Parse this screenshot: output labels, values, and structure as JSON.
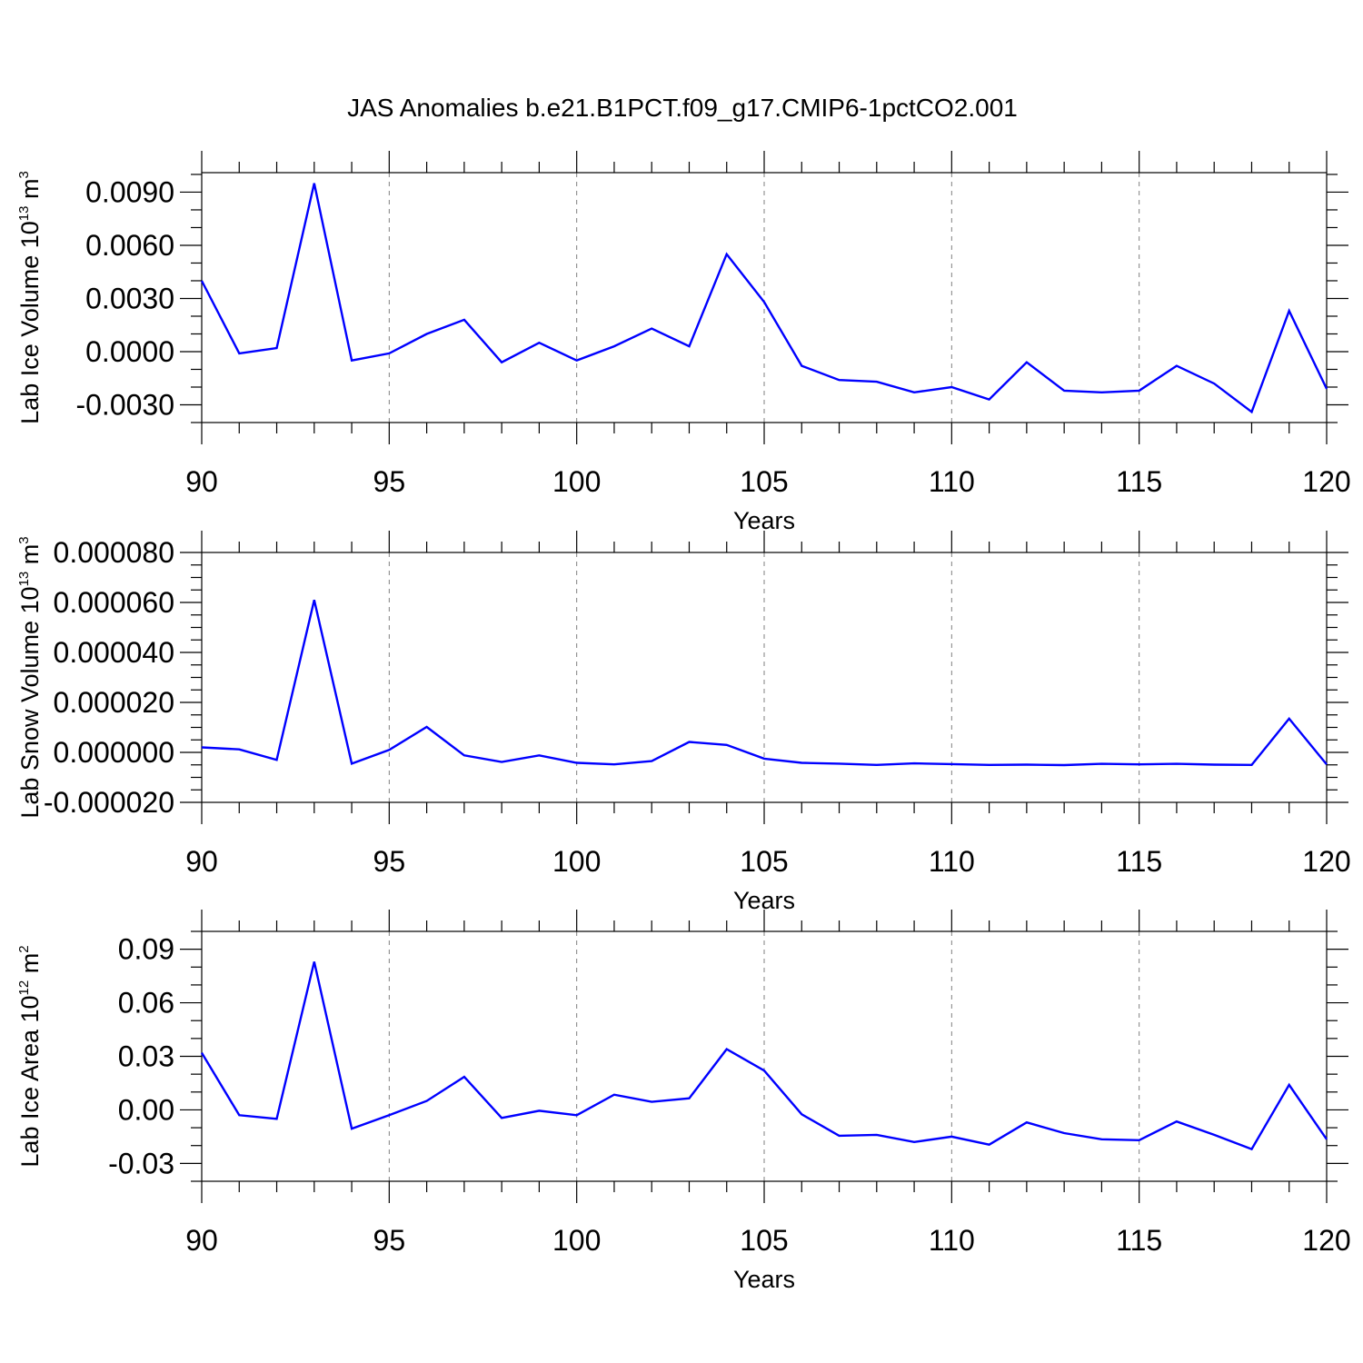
{
  "figure_title": "JAS Anomalies b.e21.B1PCT.f09_g17.CMIP6-1pctCO2.001",
  "colors": {
    "series_line": "#0000ff",
    "grid": "#7f7f7f",
    "axis": "#000000"
  },
  "chart_data": [
    {
      "type": "line",
      "title": "JAS Anomalies b.e21.B1PCT.f09_g17.CMIP6-1pctCO2.001",
      "xlabel": "Years",
      "ylabel": {
        "prefix": "Lab Ice Volume 10",
        "exponent": "13",
        "unit": "m",
        "unit_exponent": "3"
      },
      "xlim": [
        90,
        120
      ],
      "ylim": [
        -0.004,
        0.0101
      ],
      "x_ticks": [
        90,
        95,
        100,
        105,
        110,
        115,
        120
      ],
      "x_tick_labels": [
        "90",
        "95",
        "100",
        "105",
        "110",
        "115",
        "120"
      ],
      "y_ticks": [
        -0.003,
        0.0,
        0.003,
        0.006,
        0.009
      ],
      "y_tick_labels": [
        "-0.0030",
        "0.0000",
        "0.0030",
        "0.0060",
        "0.0090"
      ],
      "y_minor_step": 0.001,
      "grid": "vertical dashed at major x ticks",
      "x": [
        90,
        91,
        92,
        93,
        94,
        95,
        96,
        97,
        98,
        99,
        100,
        101,
        102,
        103,
        104,
        105,
        106,
        107,
        108,
        109,
        110,
        111,
        112,
        113,
        114,
        115,
        116,
        117,
        118,
        119,
        120
      ],
      "values": [
        0.004,
        -0.0001,
        0.0002,
        0.0095,
        -0.0005,
        -0.0001,
        0.001,
        0.0018,
        -0.0006,
        0.0005,
        -0.0005,
        0.0003,
        0.0013,
        0.0003,
        0.0055,
        0.0028,
        -0.0008,
        -0.0016,
        -0.0017,
        -0.0023,
        -0.002,
        -0.0027,
        -0.0006,
        -0.0022,
        -0.0023,
        -0.0022,
        -0.0008,
        -0.0018,
        -0.0034,
        0.0023,
        -0.0021
      ]
    },
    {
      "type": "line",
      "title": "",
      "xlabel": "Years",
      "ylabel": {
        "prefix": "Lab Snow Volume 10",
        "exponent": "13",
        "unit": "m",
        "unit_exponent": "3"
      },
      "xlim": [
        90,
        120
      ],
      "ylim": [
        -2e-05,
        8e-05
      ],
      "x_ticks": [
        90,
        95,
        100,
        105,
        110,
        115,
        120
      ],
      "x_tick_labels": [
        "90",
        "95",
        "100",
        "105",
        "110",
        "115",
        "120"
      ],
      "y_ticks": [
        -2e-05,
        0.0,
        2e-05,
        4e-05,
        6e-05,
        8e-05
      ],
      "y_tick_labels": [
        "-0.000020",
        "0.000000",
        "0.000020",
        "0.000040",
        "0.000060",
        "0.000080"
      ],
      "y_minor_step": 5e-06,
      "grid": "vertical dashed at major x ticks",
      "x": [
        90,
        91,
        92,
        93,
        94,
        95,
        96,
        97,
        98,
        99,
        100,
        101,
        102,
        103,
        104,
        105,
        106,
        107,
        108,
        109,
        110,
        111,
        112,
        113,
        114,
        115,
        116,
        117,
        118,
        119,
        120
      ],
      "values": [
        2e-06,
        1.2e-06,
        -3e-06,
        6.1e-05,
        -4.5e-06,
        1e-06,
        1.02e-05,
        -1.2e-06,
        -3.8e-06,
        -1.2e-06,
        -4.2e-06,
        -4.8e-06,
        -3.5e-06,
        4.2e-06,
        3e-06,
        -2.5e-06,
        -4.2e-06,
        -4.5e-06,
        -5e-06,
        -4.4e-06,
        -4.7e-06,
        -5e-06,
        -4.9e-06,
        -5.1e-06,
        -4.6e-06,
        -4.8e-06,
        -4.6e-06,
        -4.9e-06,
        -5e-06,
        1.35e-05,
        -4.8e-06
      ]
    },
    {
      "type": "line",
      "title": "",
      "xlabel": "Years",
      "ylabel": {
        "prefix": "Lab Ice Area 10",
        "exponent": "12",
        "unit": "m",
        "unit_exponent": "2"
      },
      "xlim": [
        90,
        120
      ],
      "ylim": [
        -0.04,
        0.1
      ],
      "x_ticks": [
        90,
        95,
        100,
        105,
        110,
        115,
        120
      ],
      "x_tick_labels": [
        "90",
        "95",
        "100",
        "105",
        "110",
        "115",
        "120"
      ],
      "y_ticks": [
        -0.03,
        0.0,
        0.03,
        0.06,
        0.09
      ],
      "y_tick_labels": [
        "-0.03",
        "0.00",
        "0.03",
        "0.06",
        "0.09"
      ],
      "y_minor_step": 0.01,
      "grid": "vertical dashed at major x ticks",
      "x": [
        90,
        91,
        92,
        93,
        94,
        95,
        96,
        97,
        98,
        99,
        100,
        101,
        102,
        103,
        104,
        105,
        106,
        107,
        108,
        109,
        110,
        111,
        112,
        113,
        114,
        115,
        116,
        117,
        118,
        119,
        120
      ],
      "values": [
        0.032,
        -0.003,
        -0.005,
        0.083,
        -0.0105,
        -0.003,
        0.005,
        0.0185,
        -0.0045,
        -0.0005,
        -0.003,
        0.0085,
        0.0045,
        0.0065,
        0.034,
        0.022,
        -0.0025,
        -0.0145,
        -0.014,
        -0.018,
        -0.015,
        -0.0195,
        -0.007,
        -0.013,
        -0.0165,
        -0.017,
        -0.0065,
        -0.014,
        -0.022,
        0.014,
        -0.0165
      ]
    }
  ]
}
